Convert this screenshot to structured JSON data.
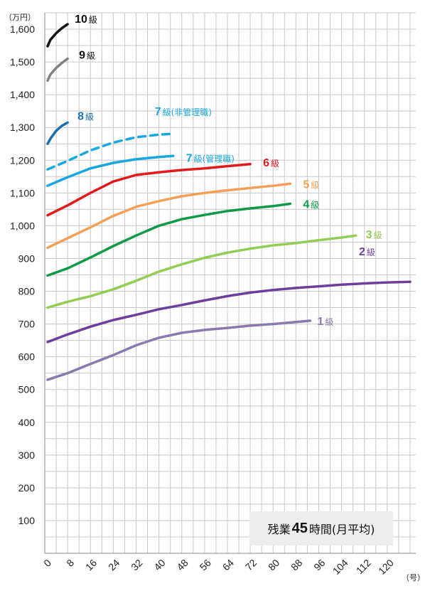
{
  "chart_data": {
    "type": "line",
    "y_unit_label": "（万円）",
    "x_unit_label": "（号）",
    "xlim": [
      0,
      130
    ],
    "ylim": [
      0,
      1650
    ],
    "x_ticks": [
      0,
      8,
      16,
      24,
      32,
      40,
      48,
      56,
      64,
      72,
      80,
      88,
      96,
      104,
      112,
      120
    ],
    "y_ticks": [
      100,
      200,
      300,
      400,
      500,
      600,
      700,
      800,
      900,
      1000,
      1100,
      1200,
      1300,
      1400,
      1500,
      1600
    ],
    "y_tick_labels": [
      "100",
      "200",
      "300",
      "400",
      "500",
      "600",
      "700",
      "800",
      "900",
      "1,000",
      "1,100",
      "1,200",
      "1,300",
      "1,400",
      "1,500",
      "1,600"
    ],
    "grid": true,
    "annotation": {
      "prefix": "残業",
      "number": "45",
      "suffix": "時間(月平均)"
    },
    "series": [
      {
        "name": "10級",
        "label_num": "10",
        "label_sfx": "級",
        "color": "#111111",
        "dashed": false,
        "x": [
          1,
          2,
          4,
          6,
          8
        ],
        "y": [
          1548,
          1568,
          1588,
          1603,
          1615
        ]
      },
      {
        "name": "9級",
        "label_num": "9",
        "label_sfx": "級",
        "color": "#808080",
        "dashed": false,
        "x": [
          1,
          2,
          4,
          6,
          8
        ],
        "y": [
          1443,
          1462,
          1482,
          1497,
          1510
        ]
      },
      {
        "name": "8級",
        "label_num": "8",
        "label_sfx": "級",
        "color": "#1a6fae",
        "dashed": false,
        "x": [
          1,
          2,
          4,
          6,
          8
        ],
        "y": [
          1250,
          1266,
          1290,
          1305,
          1315
        ]
      },
      {
        "name": "7級(非管理職)",
        "label_num": "7",
        "label_sfx": "級(非管理職)",
        "color": "#1aa7e0",
        "dashed": true,
        "x": [
          1,
          8,
          16,
          24,
          32,
          40,
          45
        ],
        "y": [
          1172,
          1198,
          1230,
          1254,
          1270,
          1278,
          1281
        ]
      },
      {
        "name": "7級(管理職)",
        "label_num": "7",
        "label_sfx": "級(管理職)",
        "color": "#1aa7e0",
        "dashed": false,
        "x": [
          1,
          8,
          16,
          24,
          32,
          40,
          45
        ],
        "y": [
          1122,
          1148,
          1175,
          1192,
          1203,
          1210,
          1213
        ]
      },
      {
        "name": "6級",
        "label_num": "6",
        "label_sfx": "級",
        "color": "#e31a1c",
        "dashed": false,
        "x": [
          1,
          8,
          16,
          24,
          32,
          40,
          48,
          56,
          64,
          72
        ],
        "y": [
          1032,
          1062,
          1100,
          1135,
          1155,
          1163,
          1170,
          1175,
          1182,
          1188
        ]
      },
      {
        "name": "5級",
        "label_num": "5",
        "label_sfx": "級",
        "color": "#f4a059",
        "dashed": false,
        "x": [
          1,
          8,
          16,
          24,
          32,
          40,
          48,
          56,
          64,
          72,
          80,
          86
        ],
        "y": [
          933,
          962,
          995,
          1030,
          1058,
          1075,
          1090,
          1100,
          1108,
          1115,
          1122,
          1128
        ]
      },
      {
        "name": "4級",
        "label_num": "4",
        "label_sfx": "級",
        "color": "#109a48",
        "dashed": false,
        "x": [
          1,
          8,
          16,
          24,
          32,
          40,
          48,
          56,
          64,
          72,
          80,
          86
        ],
        "y": [
          848,
          870,
          903,
          938,
          970,
          1000,
          1020,
          1033,
          1045,
          1053,
          1060,
          1067
        ]
      },
      {
        "name": "3級",
        "label_num": "3",
        "label_sfx": "級",
        "color": "#92cd55",
        "dashed": false,
        "x": [
          1,
          8,
          16,
          24,
          32,
          40,
          48,
          56,
          64,
          72,
          80,
          88,
          96,
          104,
          109
        ],
        "y": [
          750,
          768,
          785,
          806,
          832,
          860,
          882,
          902,
          918,
          930,
          940,
          947,
          956,
          964,
          970
        ]
      },
      {
        "name": "2級",
        "label_num": "2",
        "label_sfx": "級",
        "color": "#6e3e9c",
        "dashed": false,
        "x": [
          1,
          8,
          16,
          24,
          32,
          40,
          48,
          56,
          64,
          72,
          80,
          88,
          96,
          104,
          112,
          120,
          128
        ],
        "y": [
          645,
          668,
          692,
          712,
          728,
          745,
          758,
          772,
          785,
          796,
          804,
          810,
          815,
          820,
          824,
          827,
          829
        ]
      },
      {
        "name": "1級",
        "label_num": "1",
        "label_sfx": "級",
        "color": "#8a78b0",
        "dashed": false,
        "x": [
          1,
          8,
          16,
          24,
          32,
          40,
          48,
          56,
          64,
          72,
          80,
          88,
          93
        ],
        "y": [
          530,
          550,
          578,
          605,
          635,
          658,
          673,
          682,
          688,
          695,
          700,
          706,
          710
        ]
      }
    ]
  }
}
